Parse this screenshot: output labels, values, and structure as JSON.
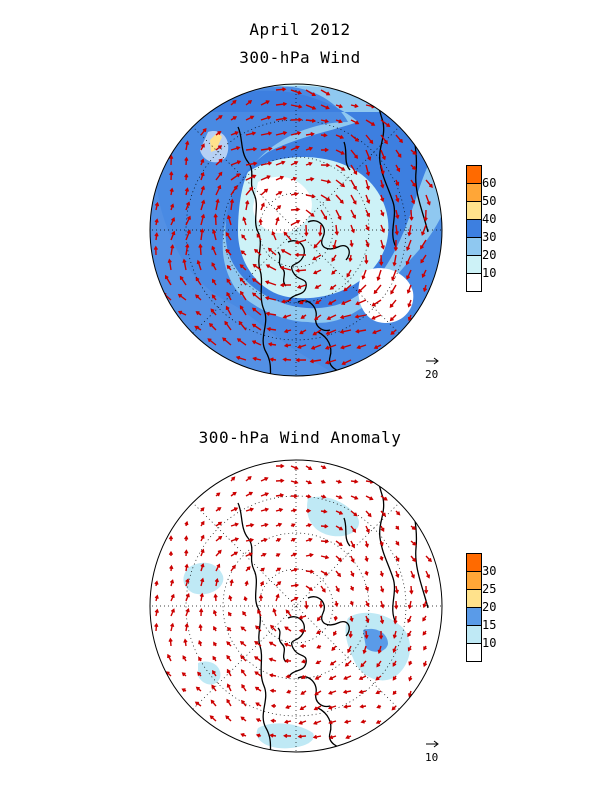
{
  "titles": {
    "date": "April 2012",
    "panel1": "300-hPa Wind",
    "panel2": "300-hPa Wind Anomaly"
  },
  "panel1": {
    "colorbar": {
      "labels": [
        "60",
        "50",
        "40",
        "30",
        "20",
        "10"
      ],
      "colors": [
        "#ff6a00",
        "#ffa637",
        "#ffe28c",
        "#3d7fe0",
        "#8fc8f0",
        "#cdf2f7",
        "#ffffff"
      ]
    },
    "reference_vector": "20"
  },
  "panel2": {
    "colorbar": {
      "labels": [
        "30",
        "25",
        "20",
        "15",
        "10"
      ],
      "colors": [
        "#ff6a00",
        "#ffa637",
        "#ffe28c",
        "#5a9be8",
        "#bfe9f5",
        "#ffffff"
      ]
    },
    "reference_vector": "10"
  },
  "colors": {
    "vector": "#cc0000",
    "coast": "#000000",
    "grid": "#000000"
  }
}
